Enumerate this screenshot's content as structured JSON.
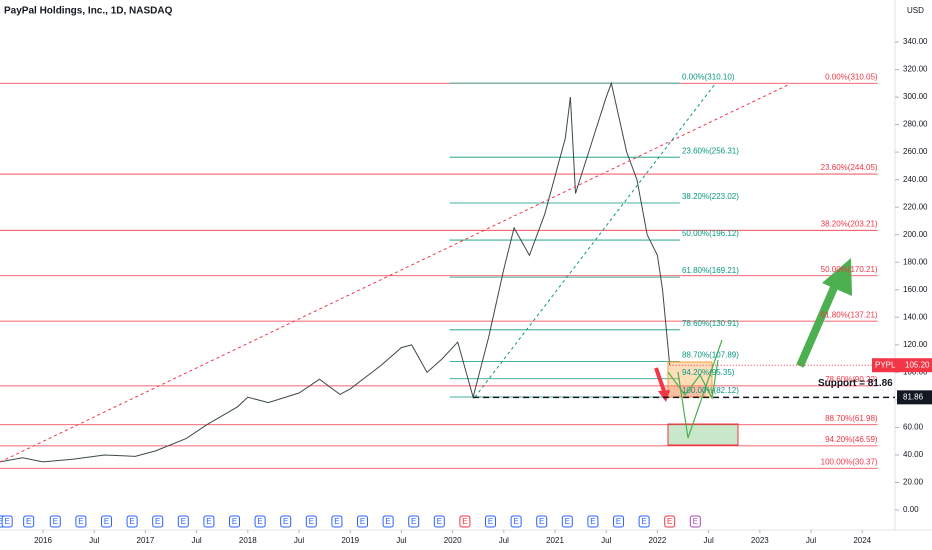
{
  "chart_data": {
    "type": "line",
    "title": "PayPal Holdings, Inc., 1D, NASDAQ",
    "currency": "USD",
    "symbol": "PYPL",
    "color": "#3d4a4a",
    "x": [
      2015.58,
      2015.8,
      2016.0,
      2016.3,
      2016.6,
      2016.9,
      2017.1,
      2017.4,
      2017.6,
      2017.9,
      2018.0,
      2018.2,
      2018.5,
      2018.7,
      2018.9,
      2019.0,
      2019.3,
      2019.5,
      2019.6,
      2019.75,
      2019.9,
      2020.05,
      2020.2,
      2020.35,
      2020.5,
      2020.6,
      2020.75,
      2020.9,
      2021.1,
      2021.15,
      2021.2,
      2021.35,
      2021.5,
      2021.55,
      2021.7,
      2021.8,
      2021.9,
      2022.0,
      2022.05,
      2022.12
    ],
    "values": [
      35,
      38,
      35,
      37,
      40,
      39,
      43,
      52,
      62,
      75,
      82,
      78,
      85,
      95,
      84,
      88,
      105,
      118,
      120,
      100,
      110,
      122,
      82,
      125,
      175,
      205,
      185,
      215,
      270,
      300,
      230,
      265,
      300,
      310,
      260,
      240,
      200,
      185,
      160,
      105.2
    ],
    "last_price": {
      "value": 105.2,
      "label": "105.20"
    },
    "support": {
      "value": 81.86,
      "label": "81.86",
      "text": "Support = 81.86"
    },
    "xlim": [
      2015.58,
      2024.32
    ],
    "ylim": [
      -14.5,
      370.5
    ],
    "xticks": [
      {
        "value": 2016,
        "label": "2016"
      },
      {
        "value": 2016.5,
        "label": "Jul"
      },
      {
        "value": 2017,
        "label": "2017"
      },
      {
        "value": 2017.5,
        "label": "Jul"
      },
      {
        "value": 2018,
        "label": "2018"
      },
      {
        "value": 2018.5,
        "label": "Jul"
      },
      {
        "value": 2019,
        "label": "2019"
      },
      {
        "value": 2019.5,
        "label": "Jul"
      },
      {
        "value": 2020,
        "label": "2020"
      },
      {
        "value": 2020.5,
        "label": "Jul"
      },
      {
        "value": 2021,
        "label": "2021"
      },
      {
        "value": 2021.5,
        "label": "Jul"
      },
      {
        "value": 2022,
        "label": "2022"
      },
      {
        "value": 2022.5,
        "label": "Jul"
      },
      {
        "value": 2023,
        "label": "2023"
      },
      {
        "value": 2023.5,
        "label": "Jul"
      },
      {
        "value": 2024,
        "label": "2024"
      }
    ],
    "yticks": [
      {
        "value": 0,
        "label": "0.00"
      },
      {
        "value": 20,
        "label": "20.00"
      },
      {
        "value": 40,
        "label": "40.00"
      },
      {
        "value": 60,
        "label": "60.00"
      },
      {
        "value": 80,
        "label": "80.00"
      },
      {
        "value": 100,
        "label": "100.00"
      },
      {
        "value": 120,
        "label": "120.00"
      },
      {
        "value": 140,
        "label": "140.00"
      },
      {
        "value": 160,
        "label": "160.00"
      },
      {
        "value": 180,
        "label": "180.00"
      },
      {
        "value": 200,
        "label": "200.00"
      },
      {
        "value": 220,
        "label": "220.00"
      },
      {
        "value": 240,
        "label": "240.00"
      },
      {
        "value": 260,
        "label": "260.00"
      },
      {
        "value": 280,
        "label": "280.00"
      },
      {
        "value": 300,
        "label": "300.00"
      },
      {
        "value": 320,
        "label": "320.00"
      },
      {
        "value": 340,
        "label": "340.00"
      }
    ],
    "earnings_marker": "E",
    "fibs": [
      {
        "color": "#f23645",
        "x_range": [
          2015.58,
          2024.15
        ],
        "levels": [
          {
            "value": 310.05,
            "label": "0.00%(310.05)"
          },
          {
            "value": 244.05,
            "label": "23.60%(244.05)"
          },
          {
            "value": 203.21,
            "label": "38.20%(203.21)"
          },
          {
            "value": 170.21,
            "label": "50.00%(170.21)"
          },
          {
            "value": 137.21,
            "label": "61.80%(137.21)"
          },
          {
            "value": 90.22,
            "label": "78.60%(90.22)"
          },
          {
            "value": 61.98,
            "label": "88.70%(61.98)"
          },
          {
            "value": 46.59,
            "label": "94.20%(46.59)"
          },
          {
            "value": 30.37,
            "label": "100.00%(30.37)"
          }
        ]
      },
      {
        "color": "#089981",
        "x_range": [
          2019.97,
          2022.22
        ],
        "levels": [
          {
            "value": 310.1,
            "label": "0.00%(310.10)"
          },
          {
            "value": 256.31,
            "label": "23.60%(256.31)"
          },
          {
            "value": 223.02,
            "label": "38.20%(223.02)"
          },
          {
            "value": 196.12,
            "label": "50.00%(196.12)"
          },
          {
            "value": 169.21,
            "label": "61.80%(169.21)"
          },
          {
            "value": 130.91,
            "label": "78.60%(130.91)"
          },
          {
            "value": 107.89,
            "label": "88.70%(107.89)"
          },
          {
            "value": 95.35,
            "label": "94.20%(95.35)"
          },
          {
            "value": 82.12,
            "label": "100.00%(82.12)"
          }
        ]
      }
    ]
  }
}
